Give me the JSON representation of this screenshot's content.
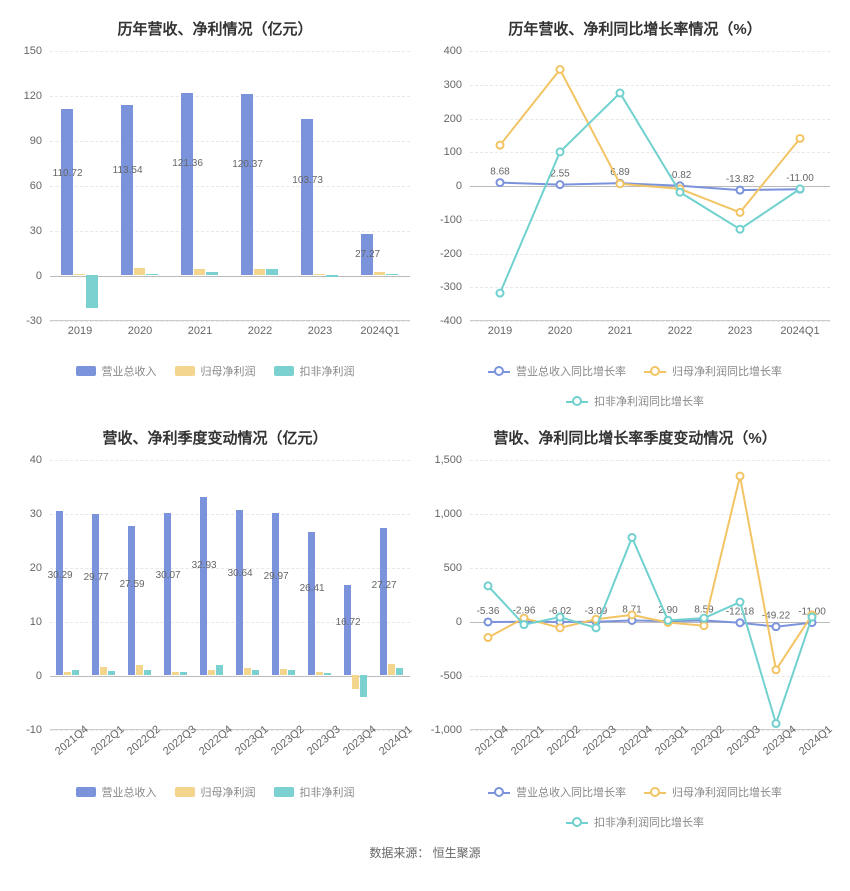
{
  "source_label": "数据来源：",
  "source_value": "恒生聚源",
  "colors": {
    "bar_blue": "#7b93db",
    "bar_yellow": "#f4d58d",
    "bar_teal": "#7bd1cf",
    "line_blue": "#7b93db",
    "line_yellow": "#f2c464",
    "line_teal": "#70d1cf",
    "grid": "#e8e8e8",
    "axis": "#cccccc",
    "text": "#666666"
  },
  "charts": {
    "annual_bar": {
      "type": "bar",
      "title": "历年营收、净利情况（亿元）",
      "categories": [
        "2019",
        "2020",
        "2021",
        "2022",
        "2023",
        "2024Q1"
      ],
      "ylim": [
        -30,
        150
      ],
      "ytick_step": 30,
      "series": [
        {
          "name": "营业总收入",
          "color": "#7b93db",
          "values": [
            110.72,
            113.54,
            121.36,
            120.37,
            103.73,
            27.27
          ],
          "show_labels": true
        },
        {
          "name": "归母净利润",
          "color": "#f4d58d",
          "values": [
            1.0,
            4.5,
            4.0,
            4.2,
            0.8,
            2.0
          ],
          "show_labels": false
        },
        {
          "name": "扣非净利润",
          "color": "#7bd1cf",
          "values": [
            -22.0,
            1.0,
            2.0,
            4.0,
            -1.0,
            1.0
          ],
          "show_labels": false
        }
      ],
      "bar_group_width": 0.62,
      "legend": [
        "营业总收入",
        "归母净利润",
        "扣非净利润"
      ]
    },
    "annual_line": {
      "type": "line",
      "title": "历年营收、净利同比增长率情况（%）",
      "categories": [
        "2019",
        "2020",
        "2021",
        "2022",
        "2023",
        "2024Q1"
      ],
      "ylim": [
        -400,
        400
      ],
      "ytick_step": 100,
      "series": [
        {
          "name": "营业总收入同比增长率",
          "color": "#7b93db",
          "values": [
            8.68,
            2.55,
            6.89,
            -0.82,
            -13.82,
            -11.0
          ],
          "show_labels": true
        },
        {
          "name": "归母净利润同比增长率",
          "color": "#f2c464",
          "values": [
            120,
            345,
            5,
            -10,
            -80,
            140
          ],
          "show_labels": false
        },
        {
          "name": "扣非净利润同比增长率",
          "color": "#70d1cf",
          "values": [
            -320,
            100,
            275,
            -20,
            -130,
            -10
          ],
          "show_labels": false
        }
      ],
      "legend": [
        "营业总收入同比增长率",
        "归母净利润同比增长率",
        "扣非净利润同比增长率"
      ]
    },
    "quarter_bar": {
      "type": "bar",
      "title": "营收、净利季度变动情况（亿元）",
      "categories": [
        "2021Q4",
        "2022Q1",
        "2022Q2",
        "2022Q3",
        "2022Q4",
        "2023Q1",
        "2023Q2",
        "2023Q3",
        "2023Q4",
        "2024Q1"
      ],
      "ylim": [
        -10,
        40
      ],
      "ytick_step": 10,
      "rotate_x": true,
      "series": [
        {
          "name": "营业总收入",
          "color": "#7b93db",
          "values": [
            30.29,
            29.77,
            27.59,
            30.07,
            32.93,
            30.64,
            29.97,
            26.41,
            16.72,
            27.27
          ],
          "show_labels": true
        },
        {
          "name": "归母净利润",
          "color": "#f4d58d",
          "values": [
            0.6,
            1.4,
            1.8,
            0.6,
            1.0,
            1.3,
            1.2,
            0.5,
            -2.5,
            2.0
          ],
          "show_labels": false
        },
        {
          "name": "扣非净利润",
          "color": "#7bd1cf",
          "values": [
            0.9,
            0.8,
            1.0,
            0.6,
            1.8,
            1.0,
            1.0,
            0.3,
            -4.0,
            1.3
          ],
          "show_labels": false
        }
      ],
      "bar_group_width": 0.66,
      "legend": [
        "营业总收入",
        "归母净利润",
        "扣非净利润"
      ]
    },
    "quarter_line": {
      "type": "line",
      "title": "营收、净利同比增长率季度变动情况（%）",
      "categories": [
        "2021Q4",
        "2022Q1",
        "2022Q2",
        "2022Q3",
        "2022Q4",
        "2023Q1",
        "2023Q2",
        "2023Q3",
        "2023Q4",
        "2024Q1"
      ],
      "ylim": [
        -1000,
        1500
      ],
      "ytick_step": 500,
      "rotate_x": true,
      "series": [
        {
          "name": "营业总收入同比增长率",
          "color": "#7b93db",
          "values": [
            -5.36,
            -2.96,
            -6.02,
            -3.09,
            8.71,
            2.9,
            8.59,
            -12.18,
            -49.22,
            -11.0
          ],
          "show_labels": true
        },
        {
          "name": "归母净利润同比增长率",
          "color": "#f2c464",
          "values": [
            -150,
            30,
            -60,
            20,
            60,
            -10,
            -40,
            1350,
            -450,
            60
          ],
          "show_labels": false
        },
        {
          "name": "扣非净利润同比增长率",
          "color": "#70d1cf",
          "values": [
            330,
            -30,
            40,
            -60,
            780,
            10,
            30,
            180,
            -950,
            40
          ],
          "show_labels": false
        }
      ],
      "legend": [
        "营业总收入同比增长率",
        "归母净利润同比增长率",
        "扣非净利润同比增长率"
      ]
    }
  }
}
